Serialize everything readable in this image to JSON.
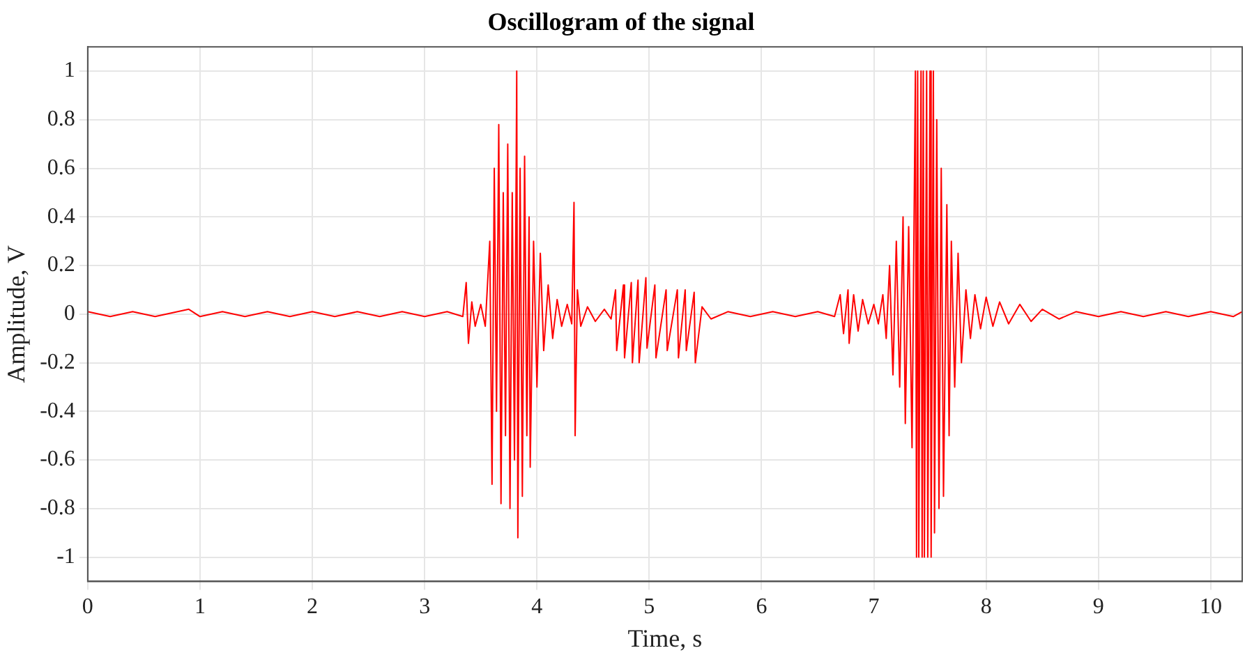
{
  "chart_data": {
    "type": "line",
    "title": "Oscillogram of the signal",
    "xlabel": "Time, s",
    "ylabel": "Amplitude, V",
    "xlim": [
      0,
      10.28
    ],
    "xticks": [
      0,
      1,
      2,
      3,
      4,
      5,
      6,
      7,
      8,
      9,
      10
    ],
    "ylim": [
      -1.1,
      1.1
    ],
    "yticks": [
      -1,
      -0.8,
      -0.6,
      -0.4,
      -0.2,
      0,
      0.2,
      0.4,
      0.6,
      0.8,
      1
    ],
    "grid": true,
    "marker": "none",
    "line_style": "solid",
    "series": [
      {
        "color": "#ff0000",
        "x": [
          0,
          0.2,
          0.4,
          0.6,
          0.8,
          0.9,
          1.0,
          1.2,
          1.4,
          1.6,
          1.8,
          2.0,
          2.2,
          2.4,
          2.6,
          2.8,
          3.0,
          3.2,
          3.34,
          3.37,
          3.39,
          3.42,
          3.45,
          3.5,
          3.54,
          3.58,
          3.6,
          3.62,
          3.64,
          3.66,
          3.68,
          3.7,
          3.72,
          3.74,
          3.76,
          3.78,
          3.8,
          3.82,
          3.83,
          3.85,
          3.87,
          3.89,
          3.91,
          3.93,
          3.94,
          3.97,
          4.0,
          4.03,
          4.06,
          4.1,
          4.14,
          4.18,
          4.22,
          4.27,
          4.31,
          4.33,
          4.34,
          4.36,
          4.39,
          4.45,
          4.52,
          4.6,
          4.66,
          4.7,
          4.71,
          4.77,
          4.78,
          4.84,
          4.85,
          4.9,
          4.91,
          4.97,
          4.98,
          5.05,
          5.06,
          5.15,
          5.16,
          5.25,
          5.26,
          5.32,
          5.33,
          5.4,
          5.41,
          5.47,
          5.55,
          5.7,
          5.9,
          6.1,
          6.3,
          6.5,
          6.65,
          6.7,
          6.73,
          6.77,
          6.78,
          6.82,
          6.86,
          6.9,
          6.95,
          7.0,
          7.04,
          7.08,
          7.11,
          7.14,
          7.17,
          7.2,
          7.23,
          7.26,
          7.28,
          7.31,
          7.34,
          7.37,
          7.38,
          7.39,
          7.4,
          7.42,
          7.43,
          7.44,
          7.45,
          7.47,
          7.48,
          7.5,
          7.51,
          7.53,
          7.54,
          7.56,
          7.58,
          7.6,
          7.62,
          7.65,
          7.67,
          7.69,
          7.72,
          7.75,
          7.78,
          7.82,
          7.86,
          7.9,
          7.95,
          8.0,
          8.06,
          8.12,
          8.2,
          8.3,
          8.4,
          8.5,
          8.65,
          8.8,
          9.0,
          9.2,
          9.4,
          9.6,
          9.8,
          10.0,
          10.2,
          10.28
        ],
        "values": [
          0.01,
          -0.01,
          0.01,
          -0.01,
          0.01,
          0.02,
          -0.01,
          0.01,
          -0.01,
          0.01,
          -0.01,
          0.01,
          -0.01,
          0.01,
          -0.01,
          0.01,
          -0.01,
          0.01,
          -0.01,
          0.13,
          -0.12,
          0.05,
          -0.05,
          0.04,
          -0.05,
          0.3,
          -0.7,
          0.6,
          -0.4,
          0.78,
          -0.78,
          0.5,
          -0.5,
          0.7,
          -0.8,
          0.5,
          -0.6,
          1.0,
          -0.92,
          0.6,
          -0.75,
          0.65,
          -0.5,
          0.4,
          -0.63,
          0.3,
          -0.3,
          0.25,
          -0.15,
          0.12,
          -0.1,
          0.06,
          -0.05,
          0.04,
          -0.04,
          0.46,
          -0.5,
          0.1,
          -0.05,
          0.03,
          -0.03,
          0.02,
          -0.02,
          0.1,
          -0.15,
          0.12,
          -0.18,
          0.13,
          -0.2,
          0.14,
          -0.2,
          0.15,
          -0.14,
          0.12,
          -0.18,
          0.1,
          -0.15,
          0.1,
          -0.18,
          0.1,
          -0.15,
          0.09,
          -0.2,
          0.03,
          -0.02,
          0.01,
          -0.01,
          0.01,
          -0.01,
          0.01,
          -0.01,
          0.08,
          -0.08,
          0.1,
          -0.12,
          0.08,
          -0.07,
          0.06,
          -0.04,
          0.04,
          -0.04,
          0.08,
          -0.1,
          0.2,
          -0.25,
          0.3,
          -0.3,
          0.4,
          -0.45,
          0.36,
          -0.55,
          1,
          -1,
          1,
          -1,
          1,
          -1,
          1,
          -1,
          1,
          -1,
          1,
          -1,
          1,
          -0.9,
          0.8,
          -0.8,
          0.6,
          -0.75,
          0.45,
          -0.5,
          0.3,
          -0.3,
          0.25,
          -0.2,
          0.1,
          -0.1,
          0.08,
          -0.06,
          0.07,
          -0.05,
          0.05,
          -0.04,
          0.04,
          -0.03,
          0.02,
          -0.02,
          0.01,
          -0.01,
          0.01,
          -0.01,
          0.01,
          -0.01,
          0.01,
          -0.01,
          0.01
        ]
      }
    ]
  }
}
